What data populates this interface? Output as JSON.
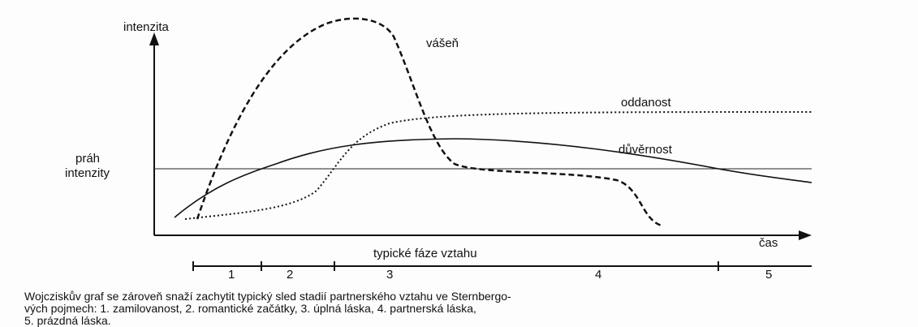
{
  "figure": {
    "y_axis_label": "intenzita",
    "x_axis_label": "čas",
    "threshold_label": [
      "práh",
      "intenzity"
    ],
    "curves": [
      "vášeň",
      "oddanost",
      "důvěrnost"
    ],
    "phases_label": "typické fáze vztahu",
    "phases": [
      "1",
      "2",
      "3",
      "4",
      "5"
    ],
    "caption": [
      "Wojcziskův graf se zároveň snaží zachytit typický sled stadií partnerského vztahu ve Sternbergo-",
      "vých pojmech: 1. zamilovanost, 2. romantické začátky, 3. úplná láska, 4. partnerská láska,",
      "5. prázdná láska."
    ]
  }
}
